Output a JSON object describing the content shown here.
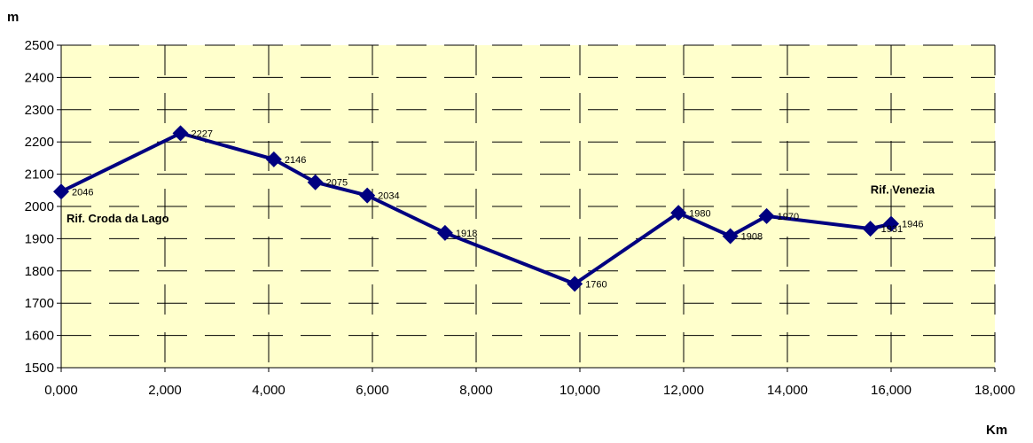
{
  "chart_data": {
    "type": "line",
    "xlabel": "Km",
    "ylabel": "m",
    "xlim": [
      0,
      18000
    ],
    "ylim": [
      1500,
      2500
    ],
    "x_ticks": [
      0,
      2000,
      4000,
      6000,
      8000,
      10000,
      12000,
      14000,
      16000,
      18000
    ],
    "x_tick_labels": [
      "0,000",
      "2,000",
      "4,000",
      "6,000",
      "8,000",
      "10,000",
      "12,000",
      "14,000",
      "16,000",
      "18,000"
    ],
    "y_ticks": [
      1500,
      1600,
      1700,
      1800,
      1900,
      2000,
      2100,
      2200,
      2300,
      2400,
      2500
    ],
    "y_tick_labels": [
      "1500",
      "1600",
      "1700",
      "1800",
      "1900",
      "2000",
      "2100",
      "2200",
      "2300",
      "2400",
      "2500"
    ],
    "grid": true,
    "colors": {
      "plot_bg": "#FFFFCC",
      "series": "#000080"
    },
    "series": [
      {
        "points": [
          {
            "x": 0,
            "y": 2046,
            "label": "2046"
          },
          {
            "x": 2300,
            "y": 2227,
            "label": "2227"
          },
          {
            "x": 4100,
            "y": 2146,
            "label": "2146"
          },
          {
            "x": 4900,
            "y": 2075,
            "label": "2075"
          },
          {
            "x": 5900,
            "y": 2034,
            "label": "2034"
          },
          {
            "x": 7400,
            "y": 1918,
            "label": "1918"
          },
          {
            "x": 9900,
            "y": 1760,
            "label": "1760"
          },
          {
            "x": 11900,
            "y": 1980,
            "label": "1980"
          },
          {
            "x": 12900,
            "y": 1908,
            "label": "1908"
          },
          {
            "x": 13600,
            "y": 1970,
            "label": "1970"
          },
          {
            "x": 15600,
            "y": 1931,
            "label": "1931"
          },
          {
            "x": 16000,
            "y": 1946,
            "label": "1946"
          }
        ]
      }
    ],
    "annotations": [
      {
        "text": "Rif. Croda da Lago",
        "x": 0,
        "y": 1950
      },
      {
        "text": "Rif. Venezia",
        "x": 15500,
        "y": 2040
      }
    ]
  }
}
